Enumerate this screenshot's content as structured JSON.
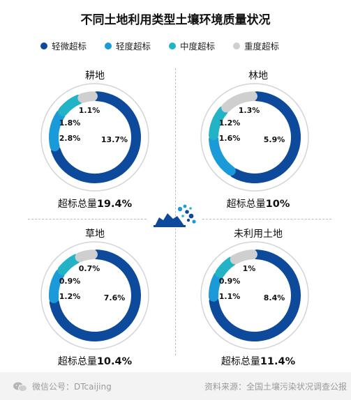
{
  "title": "不同土地利用类型土壤环境质量状况",
  "legend": [
    {
      "label": "轻微超标",
      "color": "#0d4a9c"
    },
    {
      "label": "轻度超标",
      "color": "#1a9ad9"
    },
    {
      "label": "中度超标",
      "color": "#22b3c7"
    },
    {
      "label": "重度超标",
      "color": "#cfcfcf"
    }
  ],
  "panels": {
    "p0": {
      "name": "耕地",
      "total_label": "超标总量",
      "total": "19.4%"
    },
    "p1": {
      "name": "林地",
      "total_label": "超标总量",
      "total": "10%"
    },
    "p2": {
      "name": "草地",
      "total_label": "超标总量",
      "total": "10.4%"
    },
    "p3": {
      "name": "未利用土地",
      "total_label": "超标总量",
      "total": "11.4%"
    }
  },
  "chart_data": [
    {
      "type": "pie",
      "title": "耕地",
      "categories": [
        "轻微超标",
        "轻度超标",
        "中度超标",
        "重度超标"
      ],
      "values": [
        13.7,
        2.8,
        1.8,
        1.1
      ],
      "labels": [
        "13.7%",
        "2.8%",
        "1.8%",
        "1.1%"
      ],
      "total": 19.4
    },
    {
      "type": "pie",
      "title": "林地",
      "categories": [
        "轻微超标",
        "轻度超标",
        "中度超标",
        "重度超标"
      ],
      "values": [
        5.9,
        1.6,
        1.2,
        1.3
      ],
      "labels": [
        "5.9%",
        "1.6%",
        "1.2%",
        "1.3%"
      ],
      "total": 10
    },
    {
      "type": "pie",
      "title": "草地",
      "categories": [
        "轻微超标",
        "轻度超标",
        "中度超标",
        "重度超标"
      ],
      "values": [
        7.6,
        1.2,
        0.9,
        0.7
      ],
      "labels": [
        "7.6%",
        "1.2%",
        "0.9%",
        "0.7%"
      ],
      "total": 10.4
    },
    {
      "type": "pie",
      "title": "未利用土地",
      "categories": [
        "轻微超标",
        "轻度超标",
        "中度超标",
        "重度超标"
      ],
      "values": [
        8.4,
        1.1,
        0.9,
        1.0
      ],
      "labels": [
        "8.4%",
        "1.1%",
        "0.9%",
        "1%"
      ],
      "total": 11.4
    }
  ],
  "footer": {
    "wechat": "微信公号：DTcaijing",
    "source": "资料来源：全国土壤污染状况调查公报"
  }
}
